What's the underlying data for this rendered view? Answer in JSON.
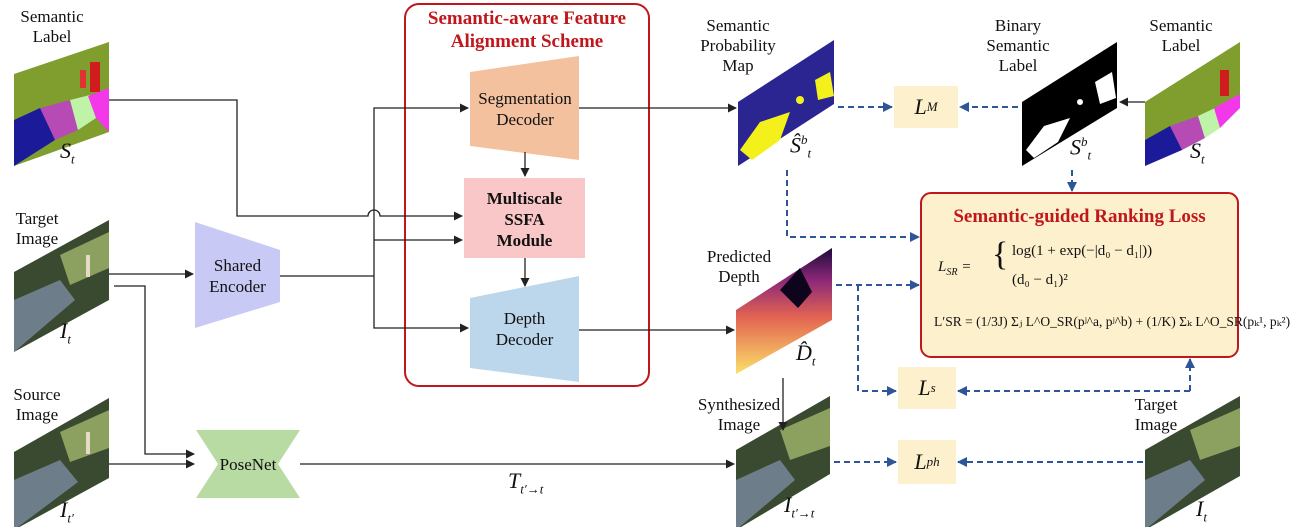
{
  "inputs": {
    "semantic_label_left": {
      "label": "Semantic\nLabel",
      "symbol": "S",
      "sub": "t"
    },
    "target_image_left": {
      "label": "Target\nImage",
      "symbol": "I",
      "sub": "t"
    },
    "source_image": {
      "label": "Source\nImage",
      "symbol": "I",
      "sub": "t′"
    }
  },
  "modules": {
    "shared_encoder": "Shared\nEncoder",
    "posenet": "PoseNet",
    "segmentation_decoder": "Segmentation\nDecoder",
    "ssfa_module": "Multiscale\nSSFA\nModule",
    "depth_decoder": "Depth\nDecoder"
  },
  "scheme_title": "Semantic-aware Feature\nAlignment Scheme",
  "outputs": {
    "semantic_prob_map": {
      "label": "Semantic\nProbability\nMap",
      "symbol": "Ŝ",
      "sub": "t",
      "sup": "b"
    },
    "predicted_depth": {
      "label": "Predicted\nDepth",
      "symbol": "D̂",
      "sub": "t"
    },
    "synthesized_image": {
      "label": "Synthesized\nImage",
      "symbol": "I",
      "sub": "t′→t"
    },
    "pose": {
      "symbol": "T",
      "sub": "t′→t"
    }
  },
  "right_inputs": {
    "binary_semantic_label": {
      "label": "Binary\nSemantic\nLabel",
      "symbol": "S",
      "sub": "t",
      "sup": "b"
    },
    "semantic_label_right": {
      "label": "Semantic\nLabel",
      "symbol": "S",
      "sub": "t"
    },
    "target_image_right": {
      "label": "Target\nImage",
      "symbol": "I",
      "sub": "t"
    }
  },
  "losses": {
    "lm": {
      "symbol": "L",
      "sub": "M"
    },
    "ls": {
      "symbol": "L",
      "sub": "s"
    },
    "lph": {
      "symbol": "L",
      "sub": "ph"
    }
  },
  "ranking_loss": {
    "title": "Semantic-guided Ranking Loss",
    "eq1_lhs": "L",
    "eq1_lhs_sub": "SR",
    "eq1_case1": "log(1 + exp(−|d₀ − d₁|))",
    "eq1_case2": "(d₀ − d₁)²",
    "eq2": "L′SR = (1/3J) Σⱼ L^O_SR(pʲ^a, pʲ^b) + (1/K) Σₖ L^O_SR(pₖ¹, pₖ²)"
  },
  "colors": {
    "scheme_border": "#c0171c",
    "encoder": "#c9c9f5",
    "posenet": "#b8dba3",
    "seg_decoder": "#f4c19e",
    "ssfa": "#f9c7c7",
    "depth_decoder": "#bcd6ec",
    "loss_fill": "#fdf0cc",
    "ranking_fill": "#fdf0cc",
    "dashed_arrow": "#2e5597"
  }
}
